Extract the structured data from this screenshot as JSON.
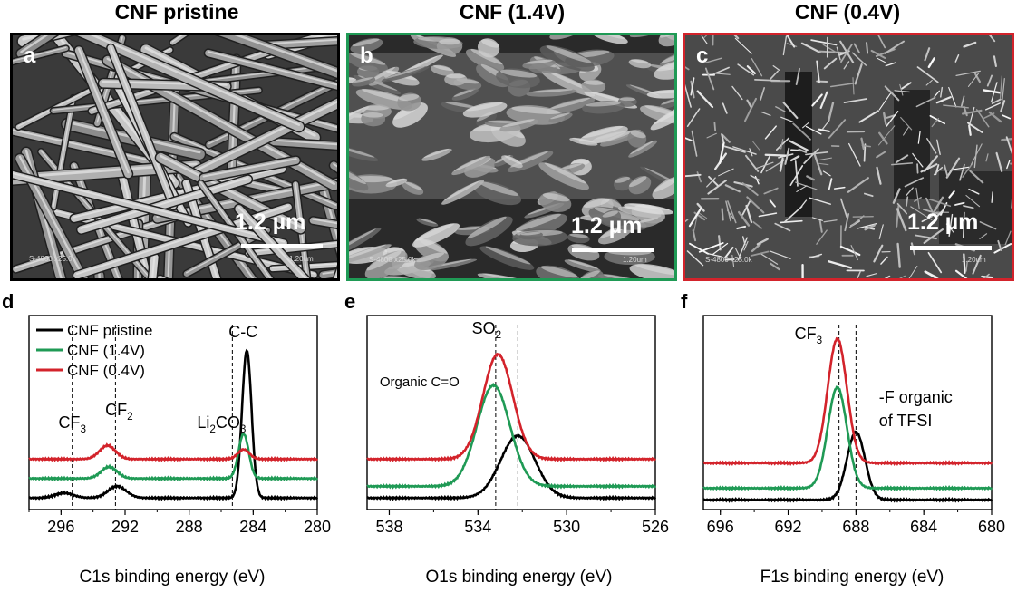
{
  "colors": {
    "black": "#000000",
    "green": "#1f9a55",
    "red": "#d3232b"
  },
  "panels_top": [
    {
      "id": "a",
      "title": "CNF pristine",
      "letter": "a",
      "frame_color": "#000000",
      "scale_label": "1.2 µm",
      "caption_left": "S-4800 x25.0k",
      "caption_right": "1.20um",
      "texture": "fibers"
    },
    {
      "id": "b",
      "title": "CNF (1.4V)",
      "letter": "b",
      "frame_color": "#1f9a55",
      "scale_label": "1.2 µm",
      "caption_left": "S-4800 x25.0k",
      "caption_right": "1.20um",
      "texture": "flakes"
    },
    {
      "id": "c",
      "title": "CNF (0.4V)",
      "letter": "c",
      "frame_color": "#d3232b",
      "scale_label": "1.2 µm",
      "caption_left": "S-4800 x25.0k",
      "caption_right": "1.20um",
      "texture": "nanosheets"
    }
  ],
  "chart_data": [
    {
      "type": "line",
      "panel": "d",
      "xlabel": "C1s binding energy (eV)",
      "xlim": [
        298,
        280
      ],
      "xticks": [
        296,
        292,
        288,
        284,
        280
      ],
      "legend": {
        "placement": "top-left",
        "entries": [
          "CNF pristine",
          "CNF (1.4V)",
          "CNF (0.4V)"
        ]
      },
      "annotations": [
        {
          "text": "C-C",
          "x": 284.4
        },
        {
          "text": "CF3",
          "x": 295.3,
          "parts": [
            "CF",
            "3"
          ]
        },
        {
          "text": "CF2",
          "x": 292.6,
          "parts": [
            "CF",
            "2"
          ]
        },
        {
          "text": "Li2CO3",
          "x": 285.3,
          "parts": [
            "Li",
            "2",
            "CO",
            "3"
          ]
        }
      ],
      "reference_lines": [
        295.3,
        292.6,
        285.3
      ],
      "series": [
        {
          "name": "CNF pristine",
          "color": "#000000",
          "baseline": 0.06,
          "peaks": [
            [
              284.4,
              0.76,
              0.42
            ],
            [
              292.5,
              0.06,
              0.8
            ],
            [
              295.8,
              0.025,
              0.8
            ]
          ]
        },
        {
          "name": "CNF (1.4V)",
          "color": "#1f9a55",
          "baseline": 0.16,
          "peaks": [
            [
              284.6,
              0.23,
              0.45
            ],
            [
              293.0,
              0.06,
              0.7
            ]
          ]
        },
        {
          "name": "CNF (0.4V)",
          "color": "#d3232b",
          "baseline": 0.26,
          "peaks": [
            [
              284.6,
              0.05,
              0.5
            ],
            [
              293.1,
              0.07,
              0.7
            ]
          ]
        }
      ]
    },
    {
      "type": "line",
      "panel": "e",
      "xlabel": "O1s binding energy (eV)",
      "xlim": [
        539,
        526
      ],
      "xticks": [
        538,
        534,
        530,
        526
      ],
      "annotations": [
        {
          "text": "SO2",
          "x": 533.2,
          "parts": [
            "SO",
            "2"
          ]
        },
        {
          "text": "Organic C=O",
          "x": 535.0
        }
      ],
      "reference_lines": [
        533.2,
        532.2
      ],
      "series": [
        {
          "name": "CNF pristine",
          "color": "#000000",
          "baseline": 0.06,
          "peaks": [
            [
              532.2,
              0.32,
              1.1
            ]
          ]
        },
        {
          "name": "CNF (1.4V)",
          "color": "#1f9a55",
          "baseline": 0.12,
          "peaks": [
            [
              533.3,
              0.52,
              1.05
            ]
          ]
        },
        {
          "name": "CNF (0.4V)",
          "color": "#d3232b",
          "baseline": 0.26,
          "peaks": [
            [
              533.1,
              0.54,
              0.95
            ]
          ]
        }
      ]
    },
    {
      "type": "line",
      "panel": "f",
      "xlabel": "F1s binding energy (eV)",
      "xlim": [
        697,
        680
      ],
      "xticks": [
        696,
        692,
        688,
        684,
        680
      ],
      "annotations": [
        {
          "text": "CF3",
          "x": 689.2,
          "parts": [
            "CF",
            "3"
          ]
        },
        {
          "text": "-F organic",
          "x": 686.0
        },
        {
          "text": "of TFSI",
          "x": 686.0
        }
      ],
      "reference_lines": [
        689.0,
        688.0
      ],
      "series": [
        {
          "name": "CNF pristine",
          "color": "#000000",
          "baseline": 0.05,
          "peaks": [
            [
              688.0,
              0.35,
              0.75
            ]
          ]
        },
        {
          "name": "CNF (1.4V)",
          "color": "#1f9a55",
          "baseline": 0.11,
          "peaks": [
            [
              689.1,
              0.52,
              0.8
            ]
          ]
        },
        {
          "name": "CNF (0.4V)",
          "color": "#d3232b",
          "baseline": 0.24,
          "peaks": [
            [
              689.1,
              0.64,
              0.8
            ]
          ]
        }
      ]
    }
  ]
}
